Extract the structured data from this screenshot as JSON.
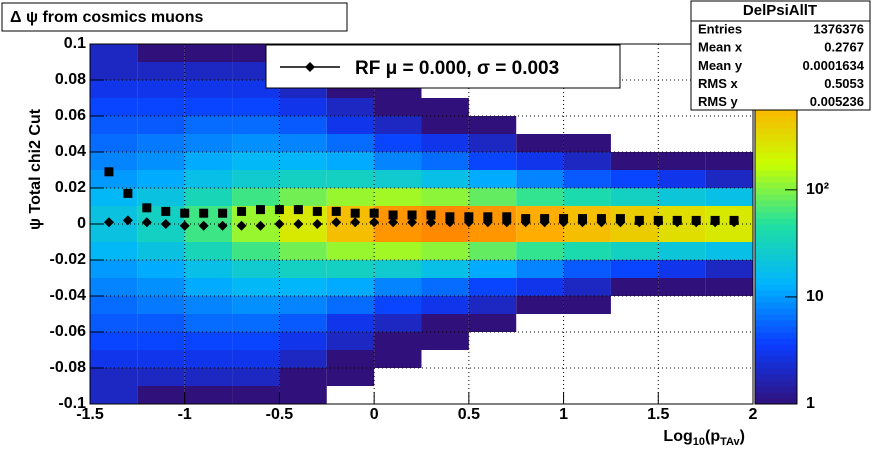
{
  "chart_data": {
    "type": "hist2d",
    "title": "Δ ψ from cosmics muons",
    "y_label": "ψ Total chi2 Cut",
    "x_label_parts": [
      {
        "text": "Log",
        "sub": false
      },
      {
        "text": "10",
        "sub": true
      },
      {
        "text": "(p",
        "sub": false
      },
      {
        "text": "TAv",
        "sub": true
      },
      {
        "text": ")",
        "sub": false
      }
    ],
    "xlim": [
      -1.5,
      2
    ],
    "xticks": [
      -1.5,
      -1,
      -0.5,
      0,
      0.5,
      1,
      1.5,
      2
    ],
    "ylim": [
      -0.1,
      0.1
    ],
    "yticks": [
      -0.1,
      -0.08,
      -0.06,
      -0.04,
      -0.02,
      0,
      0.02,
      0.04,
      0.06,
      0.08,
      0.1
    ],
    "grid": true,
    "zlim": [
      1,
      2300
    ],
    "zlog": true,
    "zticks": [
      1,
      10,
      {
        "value": 100,
        "label": "10²"
      }
    ],
    "palette": [
      "#30107a",
      "#0a3cff",
      "#00b4ff",
      "#20e0a0",
      "#c8ff00",
      "#ffb000",
      "#ff2000"
    ],
    "xbins": [
      -1.5,
      -1.25,
      -1,
      -0.75,
      -0.5,
      -0.25,
      0,
      0.25,
      0.5,
      0.75,
      1,
      1.25,
      1.5,
      1.75,
      2
    ],
    "ybins": [
      -0.1,
      -0.09,
      -0.08,
      -0.07,
      -0.06,
      -0.05,
      -0.04,
      -0.03,
      -0.02,
      -0.01,
      0,
      0.01,
      0.02,
      0.03,
      0.04,
      0.05,
      0.06,
      0.07,
      0.08,
      0.09,
      0.1
    ],
    "z": [
      [
        2,
        2,
        3,
        4,
        5,
        6,
        8,
        10,
        15,
        20,
        20,
        15,
        10,
        8,
        6,
        5,
        4,
        3,
        2,
        2
      ],
      [
        1,
        2,
        3,
        4,
        5,
        7,
        9,
        12,
        20,
        30,
        30,
        20,
        12,
        9,
        7,
        5,
        4,
        3,
        2,
        1
      ],
      [
        1,
        2,
        3,
        4,
        6,
        8,
        12,
        18,
        35,
        60,
        60,
        35,
        18,
        12,
        8,
        6,
        4,
        3,
        2,
        1
      ],
      [
        1,
        2,
        3,
        4,
        6,
        9,
        15,
        25,
        60,
        120,
        120,
        60,
        25,
        15,
        9,
        6,
        4,
        3,
        2,
        1
      ],
      [
        1,
        1,
        2,
        3,
        5,
        8,
        14,
        30,
        90,
        250,
        250,
        90,
        30,
        14,
        8,
        5,
        3,
        2,
        1,
        1
      ],
      [
        0,
        1,
        1,
        2,
        3,
        6,
        12,
        30,
        120,
        500,
        500,
        120,
        30,
        12,
        6,
        3,
        2,
        1,
        1,
        0
      ],
      [
        0,
        0,
        1,
        1,
        2,
        4,
        8,
        25,
        130,
        800,
        800,
        130,
        25,
        8,
        4,
        2,
        1,
        1,
        0,
        0
      ],
      [
        0,
        0,
        0,
        1,
        1,
        3,
        6,
        18,
        110,
        900,
        900,
        110,
        18,
        6,
        3,
        1,
        1,
        0,
        0,
        0
      ],
      [
        0,
        0,
        0,
        0,
        1,
        2,
        4,
        12,
        80,
        800,
        800,
        80,
        12,
        4,
        2,
        1,
        0,
        0,
        0,
        0
      ],
      [
        0,
        0,
        0,
        0,
        0,
        1,
        3,
        8,
        55,
        650,
        650,
        55,
        8,
        3,
        1,
        0,
        0,
        0,
        0,
        0
      ],
      [
        0,
        0,
        0,
        0,
        0,
        1,
        2,
        5,
        40,
        500,
        500,
        40,
        5,
        2,
        1,
        0,
        0,
        0,
        0,
        0
      ],
      [
        0,
        0,
        0,
        0,
        0,
        0,
        1,
        4,
        30,
        400,
        400,
        30,
        4,
        1,
        0,
        0,
        0,
        0,
        0,
        0
      ],
      [
        0,
        0,
        0,
        0,
        0,
        0,
        1,
        3,
        22,
        300,
        300,
        22,
        3,
        1,
        0,
        0,
        0,
        0,
        0,
        0
      ],
      [
        0,
        0,
        0,
        0,
        0,
        0,
        1,
        2,
        18,
        250,
        250,
        18,
        2,
        1,
        0,
        0,
        0,
        0,
        0,
        0
      ]
    ],
    "x": [
      -1.4,
      -1.3,
      -1.2,
      -1.1,
      -1,
      -0.9,
      -0.8,
      -0.7,
      -0.6,
      -0.5,
      -0.4,
      -0.3,
      -0.2,
      -0.1,
      0,
      0.1,
      0.2,
      0.3,
      0.4,
      0.5,
      0.6,
      0.7,
      0.8,
      0.9,
      1,
      1.1,
      1.2,
      1.3,
      1.4,
      1.5,
      1.6,
      1.7,
      1.8,
      1.9
    ],
    "series": [
      {
        "name": "RF μ =  0.000, σ =   0.003",
        "marker": "diamond",
        "color": "#000000",
        "values": [
          0.001,
          0.002,
          0.001,
          0,
          -0.001,
          -0.001,
          -0.001,
          -0.001,
          -0.001,
          0,
          0,
          0,
          0.001,
          0.001,
          0.001,
          0.001,
          0.001,
          0.001,
          0.001,
          0.001,
          0.001,
          0.001,
          0.001,
          0.001,
          0.001,
          0.001,
          0.001,
          0.001,
          0.001,
          0.001,
          0.001,
          0.001,
          0.001,
          0.001
        ]
      },
      {
        "marker": "square",
        "color": "#000000",
        "values": [
          0.029,
          0.017,
          0.009,
          0.007,
          0.006,
          0.006,
          0.006,
          0.007,
          0.008,
          0.008,
          0.008,
          0.007,
          0.007,
          0.006,
          0.006,
          0.005,
          0.005,
          0.005,
          0.004,
          0.004,
          0.004,
          0.004,
          0.003,
          0.003,
          0.003,
          0.003,
          0.003,
          0.003,
          0.002,
          0.002,
          0.002,
          0.002,
          0.002,
          0.002
        ]
      }
    ],
    "stats": {
      "title": "DelPsiAllT",
      "rows": [
        {
          "label": "Entries",
          "value": "1376376"
        },
        {
          "label": "Mean x",
          "value": "0.2767"
        },
        {
          "label": "Mean y",
          "value": "0.0001634"
        },
        {
          "label": "RMS x",
          "value": "0.5053"
        },
        {
          "label": "RMS y",
          "value": "0.005236"
        }
      ]
    }
  }
}
